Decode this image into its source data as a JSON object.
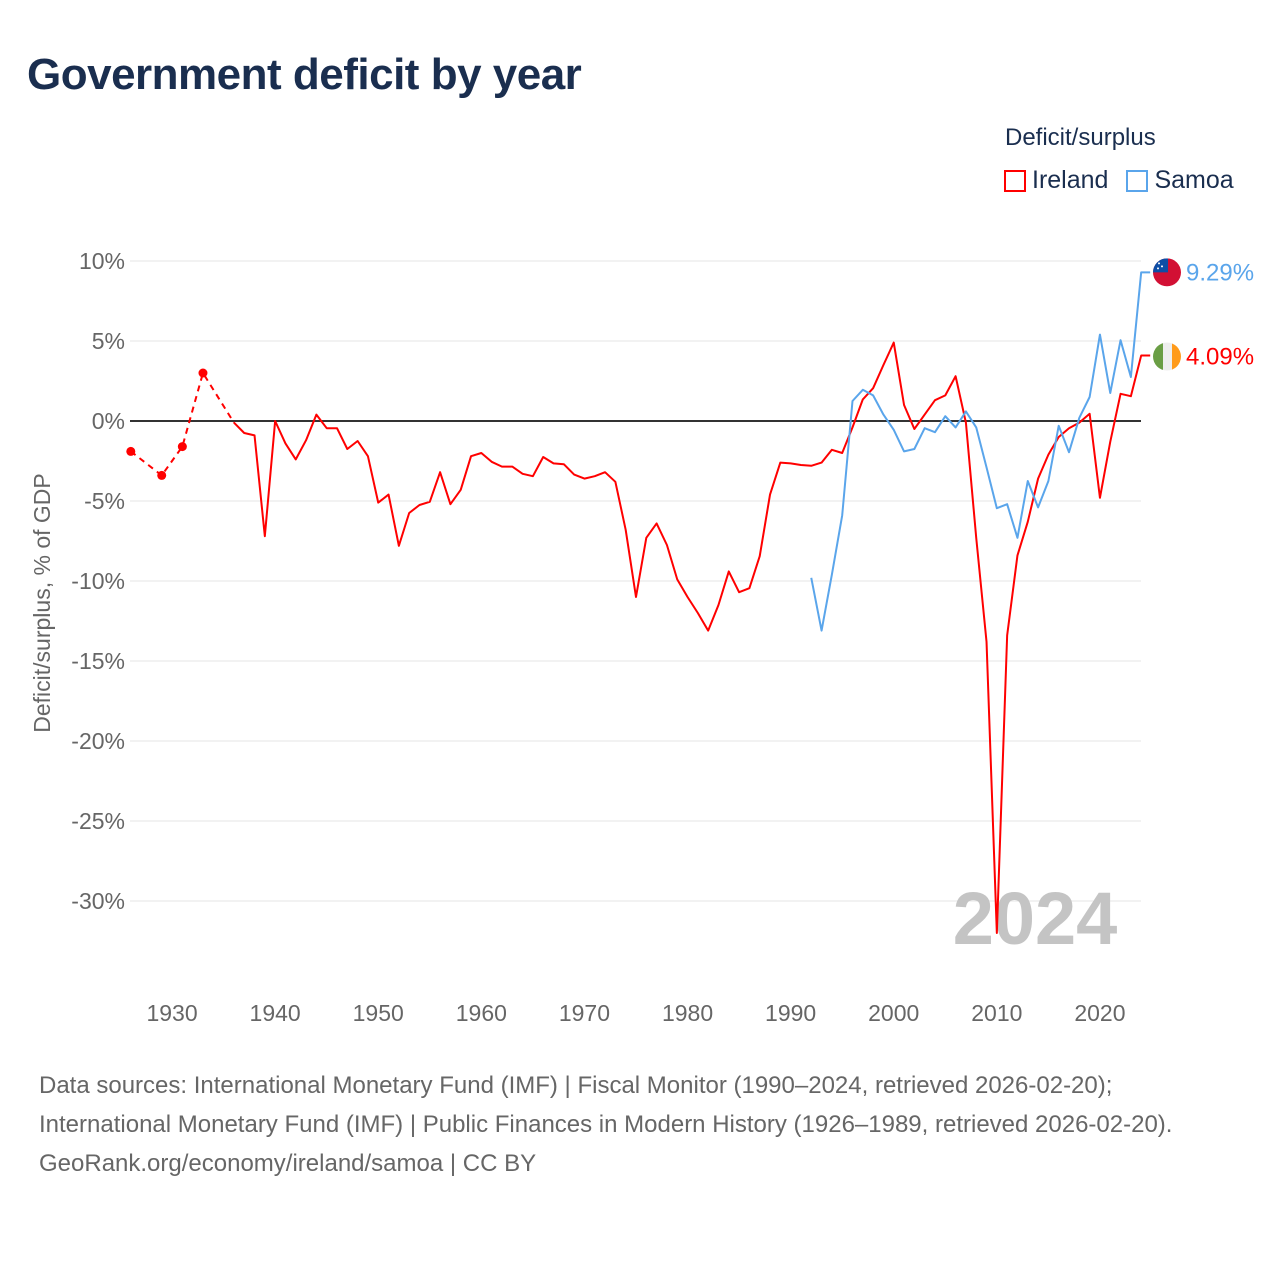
{
  "title": "Government deficit by year",
  "legend": {
    "title": "Deficit/surplus",
    "items": [
      {
        "name": "Ireland",
        "color": "#ff0000"
      },
      {
        "name": "Samoa",
        "color": "#5aa5eb"
      }
    ]
  },
  "footer": {
    "sources": "Data sources: International Monetary Fund (IMF) | Fiscal Monitor (1990–2024, retrieved 2026-02-20); International Monetary Fund (IMF) | Public Finances in Modern History (1926–1989, retrieved 2026-02-20).",
    "credit": "GeoRank.org/economy/ireland/samoa | CC BY"
  },
  "chart_data": {
    "type": "line",
    "title": "Government deficit by year",
    "ylabel": "Deficit/surplus, % of GDP",
    "xlabel": "",
    "current_year_label": "2024",
    "xlim": [
      1926,
      2024
    ],
    "ylim": [
      -34,
      10
    ],
    "y_ticks": [
      10,
      5,
      0,
      -5,
      -10,
      -15,
      -20,
      -25,
      -30
    ],
    "y_tick_labels": [
      "10%",
      "5%",
      "0%",
      "-5%",
      "-10%",
      "-15%",
      "-20%",
      "-25%",
      "-30%"
    ],
    "x_ticks": [
      1930,
      1940,
      1950,
      1960,
      1970,
      1980,
      1990,
      2000,
      2010,
      2020
    ],
    "x_tick_labels": [
      "1930",
      "1940",
      "1950",
      "1960",
      "1970",
      "1980",
      "1990",
      "2000",
      "2010",
      "2020"
    ],
    "grid": true,
    "legend_position": "top-right",
    "series": [
      {
        "name": "Ireland",
        "color": "#ff0000",
        "end_label": "4.09%",
        "sparse": {
          "x": [
            1926,
            1929,
            1931,
            1933,
            1936
          ],
          "y": [
            -1.9,
            -3.4,
            -1.6,
            3.0,
            -0.1
          ]
        },
        "x": [
          1936,
          1937,
          1938,
          1939,
          1940,
          1941,
          1942,
          1943,
          1944,
          1945,
          1946,
          1947,
          1948,
          1949,
          1950,
          1951,
          1952,
          1953,
          1954,
          1955,
          1956,
          1957,
          1958,
          1959,
          1960,
          1961,
          1962,
          1963,
          1964,
          1965,
          1966,
          1967,
          1968,
          1969,
          1970,
          1971,
          1972,
          1973,
          1974,
          1975,
          1976,
          1977,
          1978,
          1979,
          1980,
          1981,
          1982,
          1983,
          1984,
          1985,
          1986,
          1987,
          1988,
          1989,
          1990,
          1991,
          1992,
          1993,
          1994,
          1995,
          1996,
          1997,
          1998,
          1999,
          2000,
          2001,
          2002,
          2003,
          2004,
          2005,
          2006,
          2007,
          2008,
          2009,
          2010,
          2011,
          2012,
          2013,
          2014,
          2015,
          2016,
          2017,
          2018,
          2019,
          2020,
          2021,
          2022,
          2023,
          2024
        ],
        "y": [
          -0.1,
          -0.75,
          -0.9,
          -7.2,
          0,
          -1.4,
          -2.4,
          -1.2,
          0.4,
          -0.45,
          -0.45,
          -1.75,
          -1.25,
          -2.2,
          -5.1,
          -4.6,
          -7.8,
          -5.75,
          -5.25,
          -5.05,
          -3.2,
          -5.2,
          -4.3,
          -2.2,
          -2.0,
          -2.55,
          -2.85,
          -2.85,
          -3.3,
          -3.45,
          -2.25,
          -2.65,
          -2.7,
          -3.35,
          -3.6,
          -3.45,
          -3.2,
          -3.8,
          -6.8,
          -11.0,
          -7.3,
          -6.4,
          -7.75,
          -9.9,
          -11.0,
          -12.0,
          -13.1,
          -11.5,
          -9.4,
          -10.7,
          -10.45,
          -8.45,
          -4.6,
          -2.6,
          -2.65,
          -2.75,
          -2.8,
          -2.6,
          -1.8,
          -2.0,
          -0.4,
          1.35,
          2.05,
          3.5,
          4.9,
          1.0,
          -0.5,
          0.4,
          1.3,
          1.6,
          2.8,
          -0.1,
          -7.3,
          -13.8,
          -32.0,
          -13.4,
          -8.4,
          -6.3,
          -3.6,
          -2.1,
          -1.0,
          -0.45,
          -0.1,
          0.45,
          -4.8,
          -1.3,
          1.7,
          1.55,
          4.09
        ]
      },
      {
        "name": "Samoa",
        "color": "#5aa5eb",
        "end_label": "9.29%",
        "x": [
          1992,
          1993,
          1994,
          1995,
          1996,
          1997,
          1998,
          1999,
          2000,
          2001,
          2002,
          2003,
          2004,
          2005,
          2006,
          2007,
          2008,
          2009,
          2010,
          2011,
          2012,
          2013,
          2014,
          2015,
          2016,
          2017,
          2018,
          2019,
          2020,
          2021,
          2022,
          2023,
          2024
        ],
        "y": [
          -9.8,
          -13.1,
          -9.6,
          -5.9,
          1.25,
          1.95,
          1.6,
          0.4,
          -0.55,
          -1.9,
          -1.75,
          -0.45,
          -0.7,
          0.3,
          -0.4,
          0.6,
          -0.4,
          -2.9,
          -5.45,
          -5.2,
          -7.3,
          -3.75,
          -5.4,
          -3.75,
          -0.3,
          -1.95,
          0.2,
          1.5,
          5.4,
          1.75,
          5.05,
          2.75,
          9.29
        ]
      }
    ]
  }
}
